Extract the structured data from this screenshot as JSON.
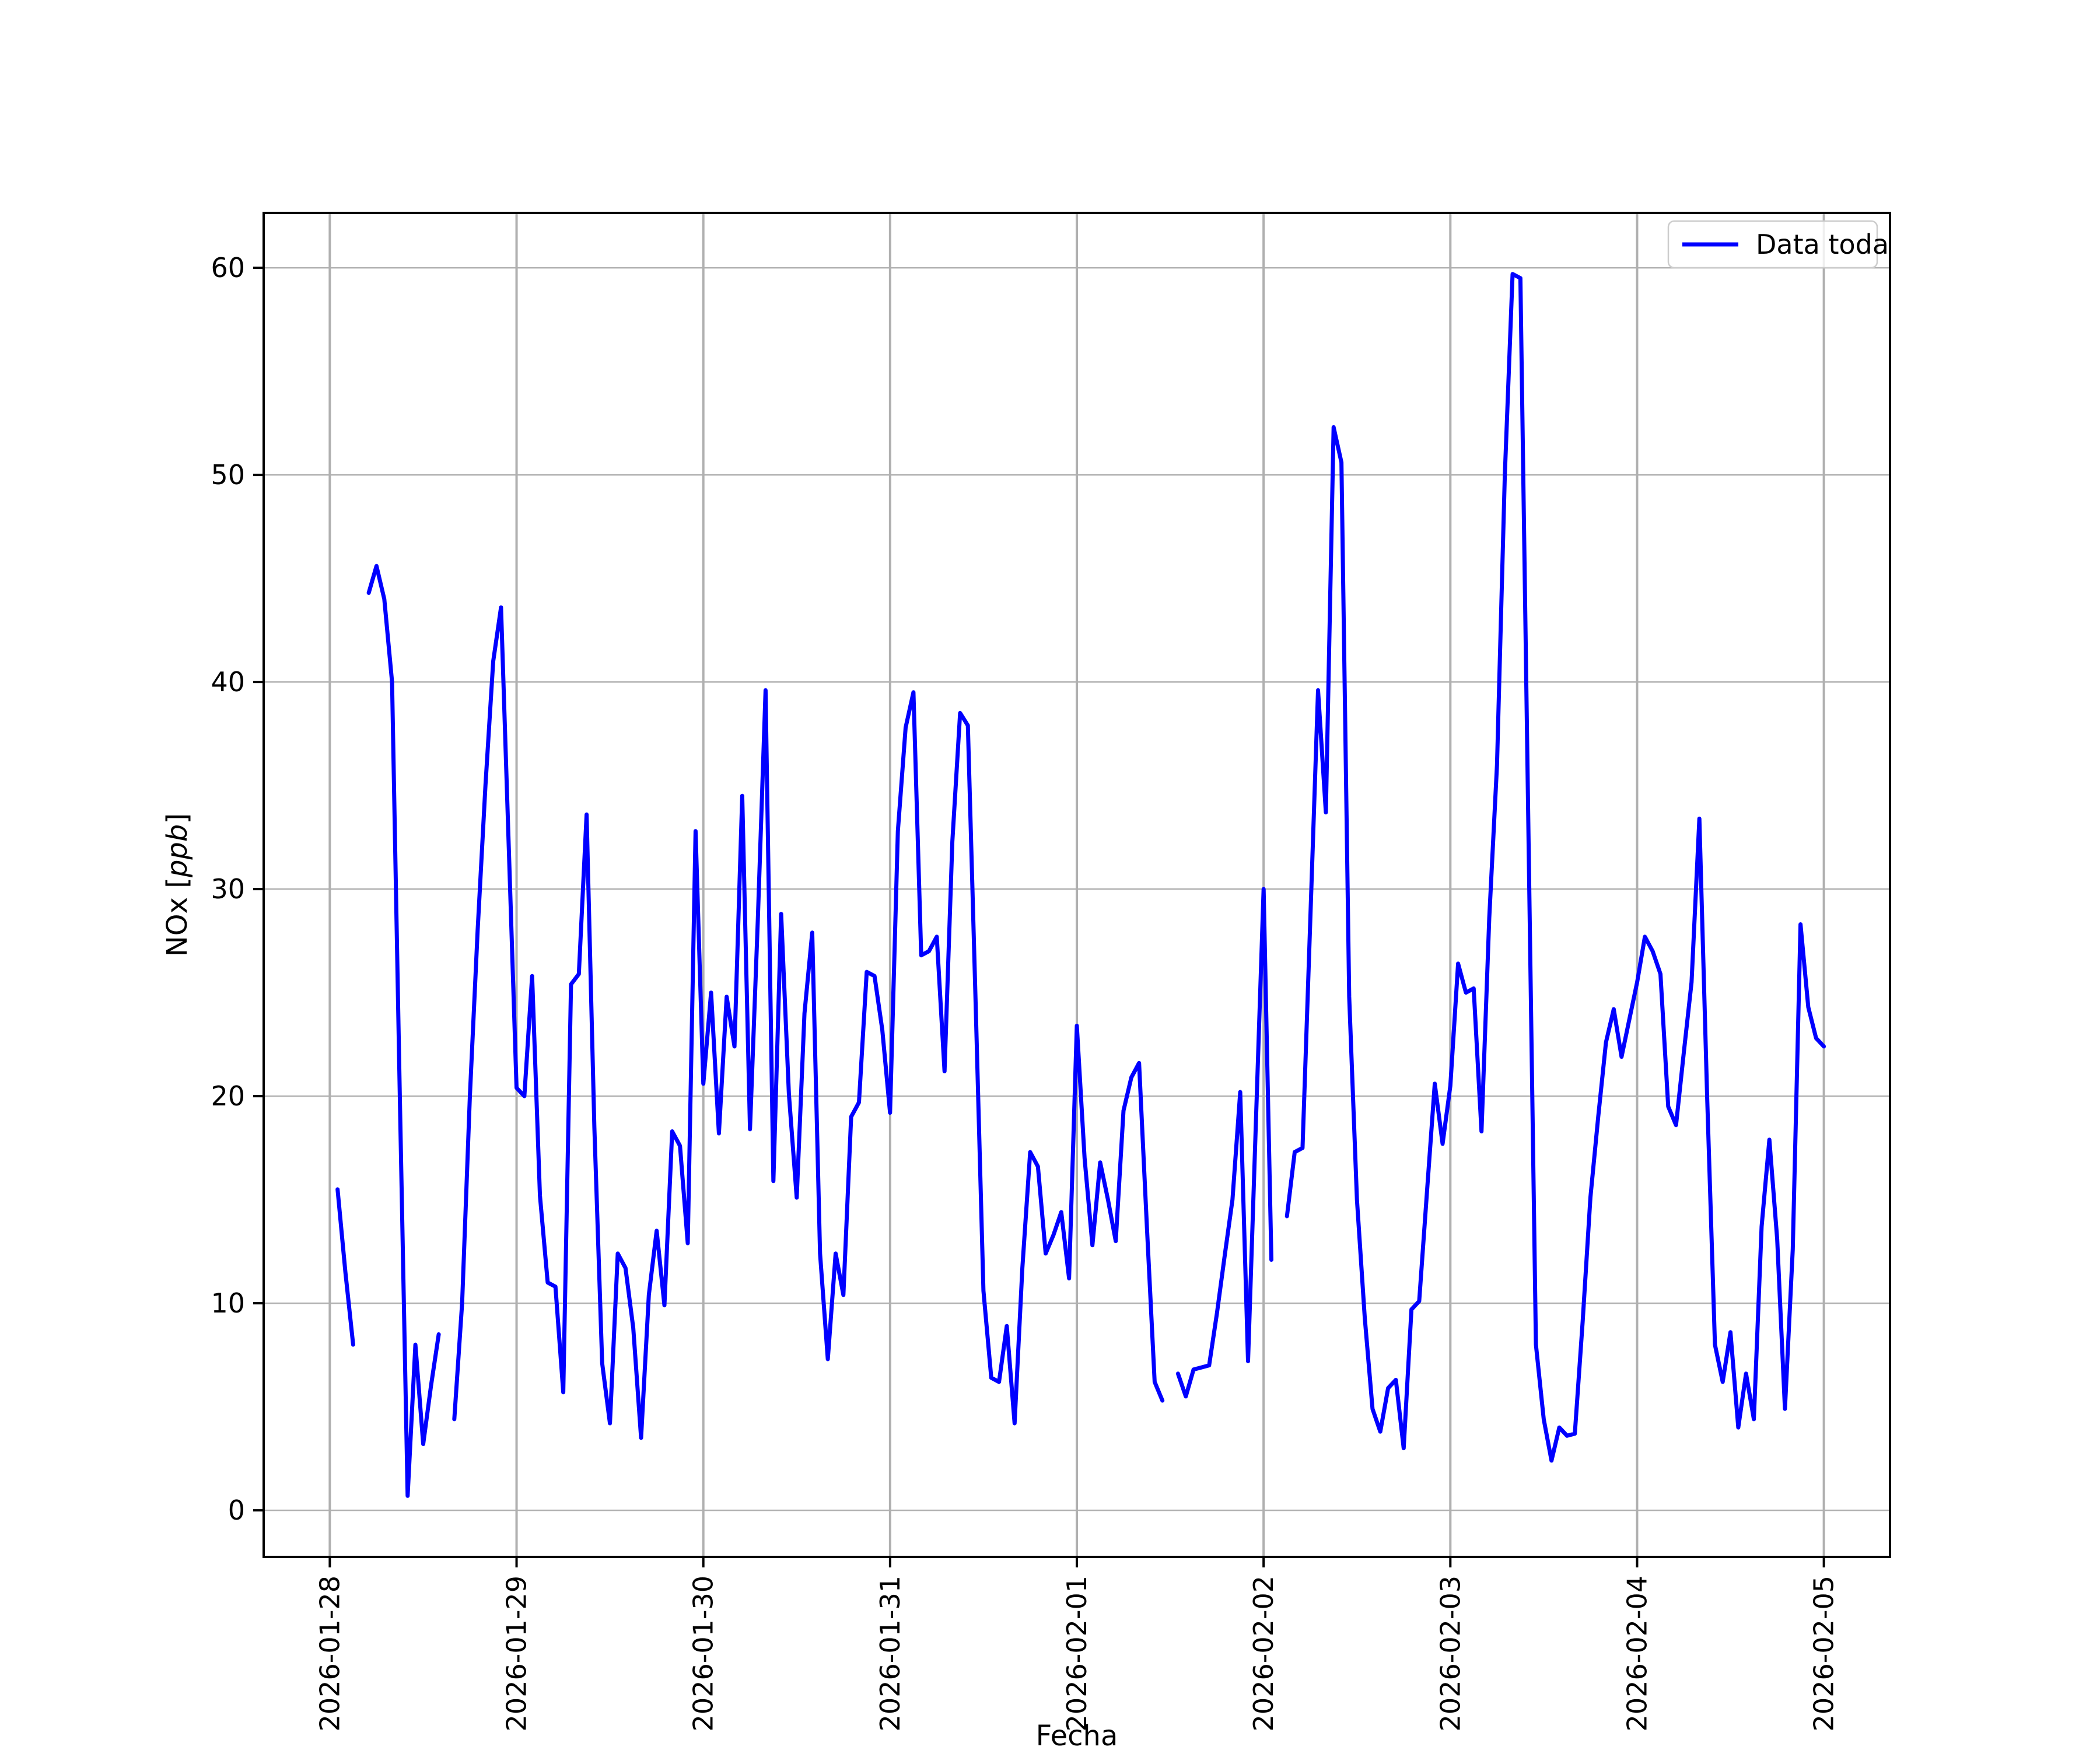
{
  "figure": {
    "background": "#ffffff"
  },
  "chart_data": {
    "type": "line",
    "title": "",
    "xlabel": "Fecha",
    "ylabel": "NOx [ppb]",
    "ylabel_prefix": "NOx [",
    "ylabel_italic": "ppb",
    "ylabel_suffix": "]",
    "legend": {
      "label": "Data toda",
      "position": "upper right"
    },
    "line_color": "#0000ff",
    "grid": true,
    "grid_color": "#b0b0b0",
    "axis_color": "#000000",
    "x_start": "2026-01-28 00:00",
    "x_interval_hours": 1,
    "x_tick_labels": [
      "2026-01-28",
      "2026-01-29",
      "2026-01-30",
      "2026-01-31",
      "2026-02-01",
      "2026-02-02",
      "2026-02-03",
      "2026-02-04",
      "2026-02-05"
    ],
    "x_tick_hours": [
      0,
      24,
      48,
      72,
      96,
      120,
      144,
      168,
      192
    ],
    "y_ticks": [
      0,
      10,
      20,
      30,
      40,
      50,
      60
    ],
    "xlim_hours": [
      -8.5,
      200.5
    ],
    "ylim": [
      -2.25,
      62.65
    ],
    "values": [
      null,
      15.5,
      11.5,
      8.0,
      null,
      44.3,
      45.6,
      44.0,
      40.0,
      20.0,
      0.7,
      8.0,
      3.2,
      6.0,
      8.5,
      null,
      4.4,
      10.0,
      20.0,
      28.0,
      35.0,
      41.0,
      43.6,
      32.0,
      20.4,
      20.0,
      25.8,
      15.2,
      11.0,
      10.8,
      5.7,
      25.4,
      25.9,
      33.6,
      18.5,
      7.1,
      4.2,
      12.4,
      11.7,
      8.8,
      3.5,
      10.4,
      13.5,
      9.9,
      18.3,
      17.6,
      12.9,
      32.8,
      20.6,
      25.0,
      18.2,
      24.8,
      22.4,
      34.5,
      18.4,
      28.5,
      39.6,
      15.9,
      28.8,
      20.1,
      15.1,
      24.0,
      27.9,
      12.4,
      7.3,
      12.4,
      10.4,
      19.0,
      19.7,
      26.0,
      25.8,
      23.2,
      19.2,
      32.8,
      37.8,
      39.5,
      26.8,
      27.0,
      27.7,
      21.2,
      32.3,
      38.5,
      37.9,
      24.4,
      10.6,
      6.4,
      6.2,
      8.9,
      4.2,
      11.7,
      17.3,
      16.6,
      12.4,
      13.3,
      14.4,
      11.2,
      23.4,
      17.0,
      12.8,
      16.8,
      15.0,
      13.0,
      19.3,
      20.9,
      21.6,
      13.7,
      6.2,
      5.3,
      null,
      6.6,
      5.5,
      6.8,
      6.9,
      7.0,
      9.5,
      12.3,
      15.0,
      20.2,
      7.2,
      18.6,
      30.0,
      12.1,
      null,
      14.2,
      17.3,
      17.5,
      28.5,
      39.6,
      33.7,
      52.3,
      50.6,
      24.8,
      15.0,
      9.3,
      4.9,
      3.8,
      5.9,
      6.3,
      3.0,
      9.7,
      10.1,
      15.4,
      20.6,
      17.7,
      20.5,
      26.4,
      25.0,
      25.2,
      18.3,
      28.6,
      36.0,
      50.0,
      59.7,
      59.5,
      33.7,
      8.0,
      4.4,
      2.4,
      4.0,
      3.6,
      3.7,
      9.1,
      15.1,
      19.0,
      22.6,
      24.2,
      21.9,
      23.7,
      25.5,
      27.7,
      27.0,
      25.9,
      19.5,
      18.6,
      22.1,
      25.5,
      33.4,
      20.0,
      8.0,
      6.2,
      8.6,
      4.0,
      6.6,
      4.4,
      13.7,
      17.9,
      13.1,
      4.9,
      12.6,
      28.3,
      24.3,
      22.8,
      22.4
    ]
  }
}
